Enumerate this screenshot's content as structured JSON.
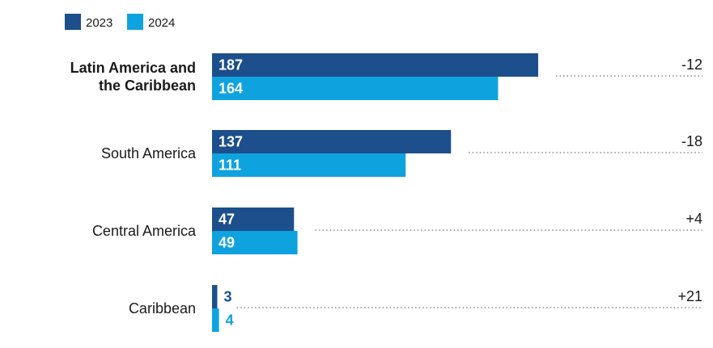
{
  "chart_data": {
    "type": "bar",
    "orientation": "horizontal",
    "categories": [
      "Latin America and the Caribbean",
      "South America",
      "Central America",
      "Caribbean"
    ],
    "category_lines": [
      [
        "Latin America and",
        "the Caribbean"
      ],
      [
        "South America"
      ],
      [
        "Central America"
      ],
      [
        "Caribbean"
      ]
    ],
    "bold_categories": [
      true,
      false,
      false,
      false
    ],
    "series": [
      {
        "name": "2023",
        "values": [
          187,
          137,
          47,
          3
        ],
        "color": "#1c4f8b"
      },
      {
        "name": "2024",
        "values": [
          164,
          111,
          49,
          4
        ],
        "color": "#0ea3df"
      }
    ],
    "differences": [
      "-12",
      "-18",
      "+4",
      "+21"
    ],
    "legend_position": "top-left",
    "grid": false,
    "xlim": [
      0,
      190
    ]
  }
}
